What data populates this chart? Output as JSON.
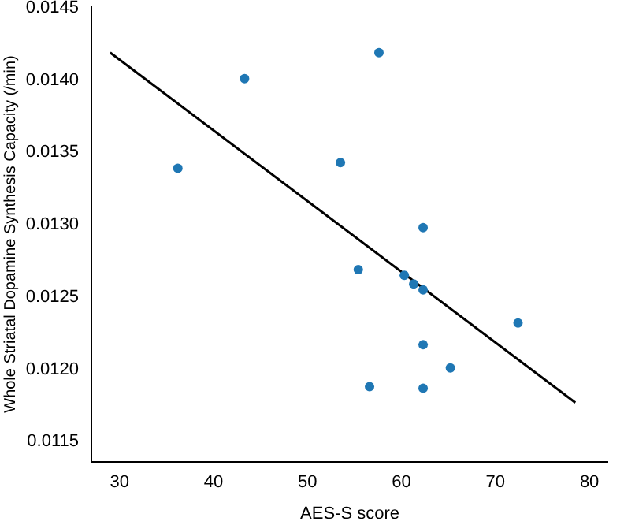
{
  "chart_data": {
    "type": "scatter",
    "xlabel": "AES-S score",
    "ylabel": "Whole Striatal Dopamine Synthesis Capacity (/min)",
    "xlim": [
      27,
      82
    ],
    "xticks": [
      30,
      40,
      50,
      60,
      70,
      80
    ],
    "ylim": [
      0.01135,
      0.0145
    ],
    "yticks": [
      {
        "value": 0.0115,
        "label": "0.0115"
      },
      {
        "value": 0.012,
        "label": "0.0120"
      },
      {
        "value": 0.0125,
        "label": "0.0125"
      },
      {
        "value": 0.013,
        "label": "0.0130"
      },
      {
        "value": 0.0135,
        "label": "0.0135"
      },
      {
        "value": 0.014,
        "label": "0.0140"
      },
      {
        "value": 0.0145,
        "label": "0.0145"
      }
    ],
    "marker": "circle",
    "series": [
      {
        "color": "#1f77b4",
        "x": [
          36.2,
          43.3,
          57.6,
          53.5,
          62.3,
          55.4,
          60.3,
          61.3,
          62.3,
          72.4,
          62.3,
          65.2,
          56.6,
          62.3
        ],
        "values": [
          0.01338,
          0.014,
          0.01418,
          0.01342,
          0.01297,
          0.01268,
          0.01264,
          0.01258,
          0.01254,
          0.01231,
          0.01216,
          0.012,
          0.01187,
          0.01186
        ]
      },
      {
        "type": "line",
        "marker": "none",
        "color": "#000000",
        "x": [
          29,
          78.5
        ],
        "values": [
          0.01418,
          0.01176
        ]
      }
    ]
  }
}
